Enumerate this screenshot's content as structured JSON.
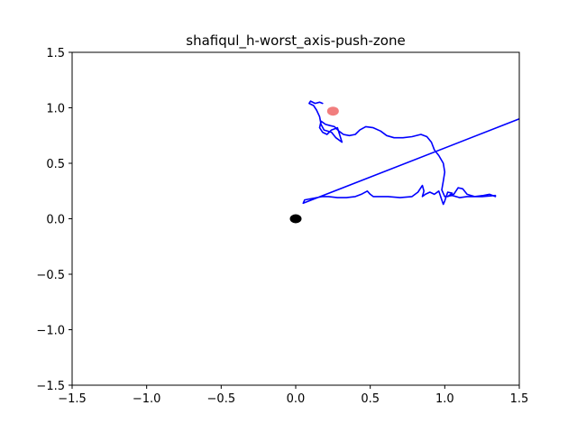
{
  "chart_data": {
    "type": "line",
    "title": "shafiqul_h-worst_axis-push-zone",
    "xlabel": "",
    "ylabel": "",
    "xlim": [
      -1.5,
      1.5
    ],
    "ylim": [
      -1.5,
      1.5
    ],
    "xticks": [
      -1.5,
      -1.0,
      -0.5,
      0.0,
      0.5,
      1.0,
      1.5
    ],
    "yticks": [
      -1.5,
      -1.0,
      -0.5,
      0.0,
      0.5,
      1.0,
      1.5
    ],
    "xtick_labels": [
      "−1.5",
      "−1.0",
      "−0.5",
      "0.0",
      "0.5",
      "1.0",
      "1.5"
    ],
    "ytick_labels": [
      "−1.5",
      "−1.0",
      "−0.5",
      "0.0",
      "0.5",
      "1.0",
      "1.5"
    ],
    "grid": false,
    "series": [
      {
        "color": "#0000ff",
        "points": [
          [
            1.5,
            0.9
          ],
          [
            0.05,
            0.14
          ],
          [
            0.06,
            0.17
          ],
          [
            0.1,
            0.18
          ],
          [
            0.14,
            0.19
          ],
          [
            0.18,
            0.2
          ],
          [
            0.22,
            0.2
          ],
          [
            0.28,
            0.19
          ],
          [
            0.34,
            0.19
          ],
          [
            0.4,
            0.2
          ],
          [
            0.44,
            0.22
          ],
          [
            0.48,
            0.25
          ],
          [
            0.5,
            0.22
          ],
          [
            0.52,
            0.2
          ],
          [
            0.56,
            0.2
          ],
          [
            0.62,
            0.2
          ],
          [
            0.7,
            0.19
          ],
          [
            0.78,
            0.2
          ],
          [
            0.82,
            0.24
          ],
          [
            0.85,
            0.3
          ],
          [
            0.86,
            0.25
          ],
          [
            0.85,
            0.2
          ],
          [
            0.87,
            0.22
          ],
          [
            0.9,
            0.24
          ],
          [
            0.93,
            0.22
          ],
          [
            0.96,
            0.25
          ],
          [
            0.98,
            0.17
          ],
          [
            0.99,
            0.13
          ],
          [
            1.0,
            0.16
          ],
          [
            1.02,
            0.24
          ],
          [
            1.05,
            0.23
          ],
          [
            1.02,
            0.2
          ],
          [
            1.06,
            0.22
          ],
          [
            1.09,
            0.28
          ],
          [
            1.12,
            0.27
          ],
          [
            1.15,
            0.22
          ],
          [
            1.2,
            0.2
          ],
          [
            1.26,
            0.21
          ],
          [
            1.3,
            0.22
          ],
          [
            1.34,
            0.2
          ],
          [
            1.34,
            0.21
          ],
          [
            1.25,
            0.2
          ],
          [
            1.15,
            0.2
          ],
          [
            1.1,
            0.19
          ],
          [
            1.05,
            0.21
          ],
          [
            1.0,
            0.2
          ],
          [
            0.98,
            0.26
          ],
          [
            0.99,
            0.34
          ],
          [
            1.0,
            0.42
          ],
          [
            0.99,
            0.5
          ],
          [
            0.96,
            0.57
          ],
          [
            0.93,
            0.62
          ],
          [
            0.91,
            0.69
          ],
          [
            0.88,
            0.74
          ],
          [
            0.84,
            0.76
          ],
          [
            0.78,
            0.74
          ],
          [
            0.72,
            0.73
          ],
          [
            0.66,
            0.73
          ],
          [
            0.61,
            0.75
          ],
          [
            0.57,
            0.79
          ],
          [
            0.52,
            0.82
          ],
          [
            0.47,
            0.83
          ],
          [
            0.43,
            0.8
          ],
          [
            0.4,
            0.76
          ],
          [
            0.36,
            0.75
          ],
          [
            0.32,
            0.76
          ],
          [
            0.29,
            0.79
          ],
          [
            0.26,
            0.83
          ],
          [
            0.23,
            0.84
          ],
          [
            0.2,
            0.85
          ],
          [
            0.17,
            0.88
          ],
          [
            0.16,
            0.82
          ],
          [
            0.18,
            0.78
          ],
          [
            0.21,
            0.76
          ],
          [
            0.24,
            0.8
          ],
          [
            0.28,
            0.82
          ],
          [
            0.29,
            0.78
          ],
          [
            0.31,
            0.69
          ],
          [
            0.27,
            0.73
          ],
          [
            0.24,
            0.78
          ],
          [
            0.19,
            0.8
          ],
          [
            0.17,
            0.85
          ],
          [
            0.16,
            0.92
          ],
          [
            0.14,
            0.98
          ],
          [
            0.12,
            1.02
          ],
          [
            0.09,
            1.04
          ],
          [
            0.1,
            1.06
          ],
          [
            0.13,
            1.04
          ],
          [
            0.16,
            1.05
          ],
          [
            0.18,
            1.04
          ]
        ]
      }
    ],
    "markers": [
      {
        "kind": "origin",
        "x": 0.0,
        "y": 0.0,
        "color": "#000000"
      },
      {
        "kind": "target",
        "x": 0.25,
        "y": 0.97,
        "color": "#f07070"
      }
    ]
  }
}
